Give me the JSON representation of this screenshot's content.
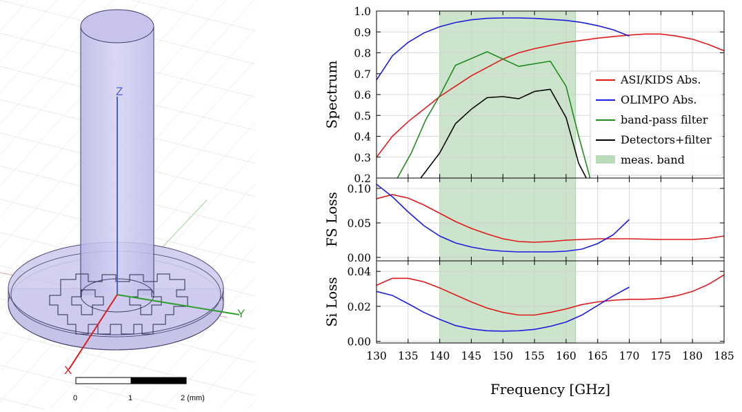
{
  "cad_view": {
    "axes": {
      "z": "Z",
      "y": "Y",
      "x": "X"
    },
    "scale_bar": {
      "ticks": [
        "0",
        "1",
        "2 (mm)"
      ]
    },
    "colors": {
      "volume": "#c9c6ea",
      "edge": "#3a3a6a",
      "z_axis": "#4a60d8",
      "y_axis": "#2e9e2e",
      "x_axis": "#e01818"
    }
  },
  "chart_data": [
    {
      "type": "line",
      "panel": "top",
      "ylabel": "Spectrum",
      "ylim": [
        0.2,
        1.0
      ],
      "yticks": [
        "0.2",
        "0.3",
        "0.4",
        "0.5",
        "0.6",
        "0.7",
        "0.8",
        "0.9",
        "1.0"
      ],
      "legend_position": "right",
      "band": {
        "label": "meas. band",
        "x": [
          140,
          161.5
        ],
        "color": "#a9d3a9"
      },
      "series": [
        {
          "name": "ASI/KIDS Abs.",
          "color": "#e01818",
          "x": [
            130,
            132.5,
            135,
            137.5,
            140,
            142.5,
            145,
            147.5,
            150,
            152.5,
            155,
            157.5,
            160,
            162.5,
            165,
            167.5,
            170,
            172.5,
            175,
            177.5,
            180,
            182.5,
            185
          ],
          "y": [
            0.3,
            0.4,
            0.47,
            0.53,
            0.59,
            0.64,
            0.69,
            0.73,
            0.77,
            0.8,
            0.82,
            0.835,
            0.85,
            0.86,
            0.87,
            0.878,
            0.885,
            0.89,
            0.89,
            0.88,
            0.865,
            0.84,
            0.81
          ]
        },
        {
          "name": "OLIMPO Abs.",
          "color": "#1c1ce0",
          "x": [
            130,
            132.5,
            135,
            137.5,
            140,
            142.5,
            145,
            147.5,
            150,
            152.5,
            155,
            157.5,
            160,
            162.5,
            165,
            167.5,
            170
          ],
          "y": [
            0.67,
            0.785,
            0.85,
            0.895,
            0.925,
            0.945,
            0.958,
            0.965,
            0.967,
            0.967,
            0.965,
            0.96,
            0.955,
            0.945,
            0.93,
            0.91,
            0.88
          ]
        },
        {
          "name": "band-pass filter",
          "color": "#1f8a1f",
          "x": [
            133.3,
            135.5,
            137.8,
            140.1,
            142.5,
            147.5,
            152.5,
            157.5,
            160,
            162,
            163.8
          ],
          "y": [
            0.2,
            0.32,
            0.48,
            0.6,
            0.74,
            0.805,
            0.735,
            0.76,
            0.64,
            0.4,
            0.2
          ]
        },
        {
          "name": "Detectors+filter",
          "color": "#000000",
          "x": [
            137,
            140,
            142.5,
            145,
            147.5,
            150,
            152.5,
            155,
            157.5,
            160,
            162,
            163.2
          ],
          "y": [
            0.2,
            0.32,
            0.46,
            0.53,
            0.585,
            0.59,
            0.58,
            0.615,
            0.625,
            0.49,
            0.27,
            0.2
          ]
        }
      ]
    },
    {
      "type": "line",
      "panel": "middle",
      "ylabel": "FS Loss",
      "ylim": [
        -0.005,
        0.115
      ],
      "yticks": [
        "0.00",
        "0.05",
        "0.10"
      ],
      "series": [
        {
          "name": "ASI/KIDS",
          "color": "#e01818",
          "x": [
            130,
            132.5,
            135,
            137.5,
            140,
            142.5,
            145,
            147.5,
            150,
            152.5,
            155,
            157.5,
            160,
            162.5,
            165,
            167.5,
            170,
            172.5,
            175,
            177.5,
            180,
            182.5,
            185
          ],
          "y": [
            0.085,
            0.091,
            0.086,
            0.076,
            0.064,
            0.052,
            0.042,
            0.034,
            0.027,
            0.023,
            0.022,
            0.023,
            0.025,
            0.026,
            0.027,
            0.027,
            0.027,
            0.0265,
            0.026,
            0.026,
            0.026,
            0.0275,
            0.031
          ]
        },
        {
          "name": "OLIMPO",
          "color": "#1c1ce0",
          "x": [
            130,
            132.5,
            135,
            137.5,
            140,
            142.5,
            145,
            147.5,
            150,
            152.5,
            155,
            157.5,
            160,
            162.5,
            165,
            167.5,
            170
          ],
          "y": [
            0.106,
            0.088,
            0.066,
            0.046,
            0.031,
            0.021,
            0.015,
            0.011,
            0.009,
            0.008,
            0.008,
            0.008,
            0.009,
            0.012,
            0.02,
            0.033,
            0.055
          ]
        }
      ]
    },
    {
      "type": "line",
      "panel": "bottom",
      "ylabel": "Si Loss",
      "xlabel": "Frequency [GHz]",
      "ylim": [
        -0.001,
        0.046
      ],
      "yticks": [
        "0.00",
        "0.02",
        "0.04"
      ],
      "xlim": [
        130,
        185
      ],
      "xticks": [
        "130",
        "135",
        "140",
        "145",
        "150",
        "155",
        "160",
        "165",
        "170",
        "175",
        "180",
        "185"
      ],
      "series": [
        {
          "name": "ASI/KIDS",
          "color": "#e01818",
          "x": [
            130,
            132.5,
            135,
            137.5,
            140,
            142.5,
            145,
            147.5,
            150,
            152.5,
            155,
            157.5,
            160,
            162.5,
            165,
            167.5,
            170,
            172.5,
            175,
            177.5,
            180,
            182.5,
            185
          ],
          "y": [
            0.032,
            0.036,
            0.036,
            0.034,
            0.0305,
            0.0265,
            0.0225,
            0.019,
            0.0165,
            0.015,
            0.015,
            0.0165,
            0.0185,
            0.021,
            0.0225,
            0.0235,
            0.024,
            0.024,
            0.0245,
            0.026,
            0.0285,
            0.0325,
            0.038
          ]
        },
        {
          "name": "OLIMPO",
          "color": "#1c1ce0",
          "x": [
            130,
            132.5,
            135,
            137.5,
            140,
            142.5,
            145,
            147.5,
            150,
            152.5,
            155,
            157.5,
            160,
            162.5,
            165,
            167.5,
            170
          ],
          "y": [
            0.0285,
            0.0262,
            0.0215,
            0.0165,
            0.0125,
            0.009,
            0.007,
            0.006,
            0.0058,
            0.006,
            0.0068,
            0.0085,
            0.011,
            0.015,
            0.0205,
            0.026,
            0.031
          ]
        }
      ]
    }
  ]
}
